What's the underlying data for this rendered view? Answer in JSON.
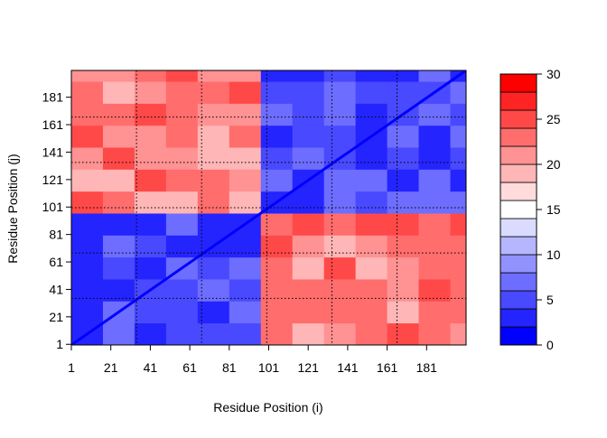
{
  "chart_data": {
    "type": "heatmap",
    "title": "",
    "xlabel": "Residue Position (i)",
    "ylabel": "Residue Position (j)",
    "n_residues": 200,
    "domains": [
      {
        "start": 1,
        "end": 100
      },
      {
        "start": 101,
        "end": 200
      }
    ],
    "x_ticks": [
      1,
      21,
      41,
      61,
      81,
      101,
      121,
      141,
      161,
      181
    ],
    "y_ticks": [
      1,
      21,
      41,
      61,
      81,
      101,
      121,
      141,
      161,
      181
    ],
    "x_ticks_minor": [
      1,
      21,
      41,
      61,
      81,
      101,
      121,
      141,
      161,
      181
    ],
    "gridlines_dotted_at": [
      34,
      67,
      100,
      133,
      166
    ],
    "value_range": [
      0,
      30
    ],
    "color_scale": {
      "low": "#0000ff",
      "mid": "#ffffff",
      "high": "#ff0000",
      "levels": 15
    },
    "colorbar_ticks": [
      0,
      5,
      10,
      15,
      20,
      25,
      30
    ],
    "intra_domain_value": 5,
    "inter_domain_value": 22,
    "diagonal_value": 0,
    "grid": true
  }
}
